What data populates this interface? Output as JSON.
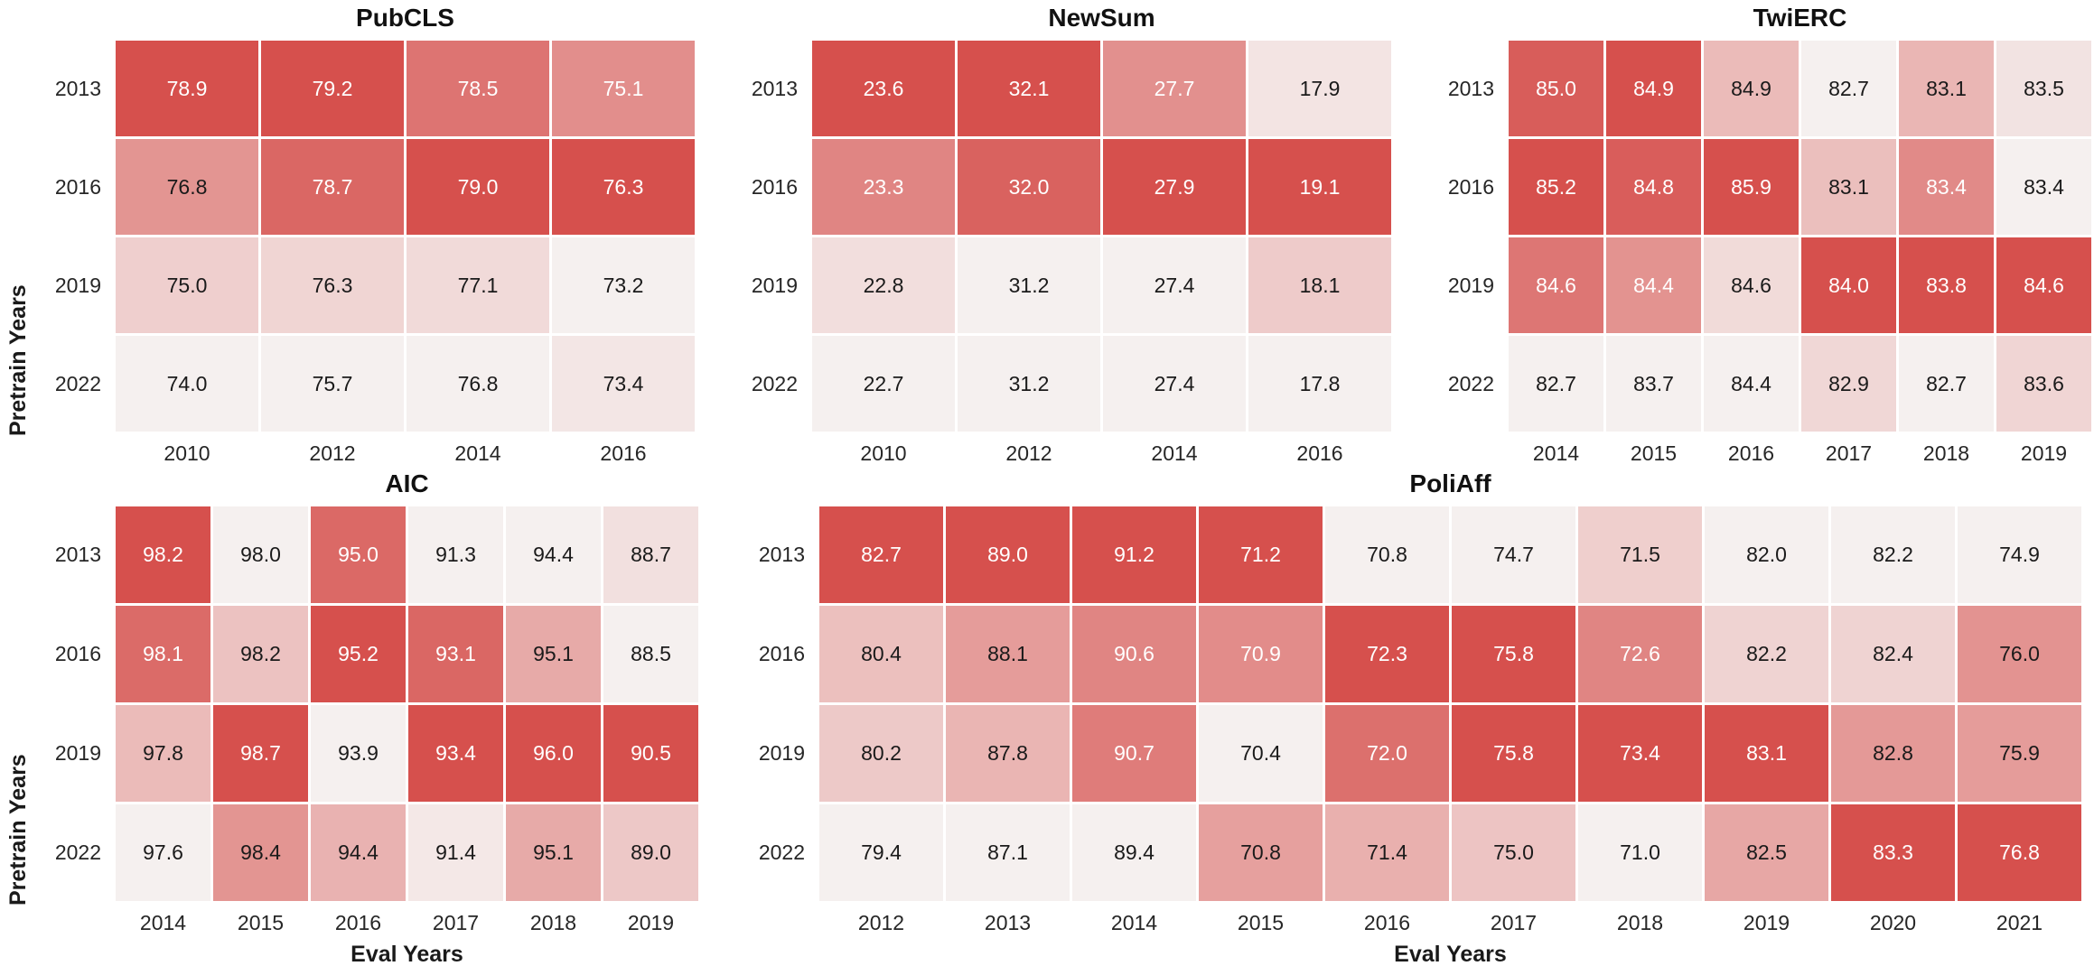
{
  "axis": {
    "pretrain_label": "Pretrain Years",
    "eval_label": "Eval Years"
  },
  "colors": {
    "cmap_low": "#f5f0ef",
    "cmap_high": "#d6504d",
    "annot_dark": "#1a1a1a",
    "annot_light": "#ffffff",
    "tick": "#262626",
    "white_text_threshold": 0.58
  },
  "chart_data": [
    {
      "type": "heatmap",
      "title": "PubCLS",
      "ylabel": "Pretrain Years",
      "xlabel": "",
      "normalization": "per-column",
      "rows": [
        "2013",
        "2016",
        "2019",
        "2022"
      ],
      "columns": [
        "2010",
        "2012",
        "2014",
        "2016"
      ],
      "values": [
        [
          78.9,
          79.2,
          78.5,
          75.1
        ],
        [
          76.8,
          78.7,
          79.0,
          76.3
        ],
        [
          75.0,
          76.3,
          77.1,
          73.2
        ],
        [
          74.0,
          75.7,
          76.8,
          73.4
        ]
      ]
    },
    {
      "type": "heatmap",
      "title": "NewSum",
      "ylabel": "",
      "xlabel": "",
      "normalization": "per-column",
      "rows": [
        "2013",
        "2016",
        "2019",
        "2022"
      ],
      "columns": [
        "2010",
        "2012",
        "2014",
        "2016"
      ],
      "values": [
        [
          23.6,
          32.1,
          27.7,
          17.9
        ],
        [
          23.3,
          32.0,
          27.9,
          19.1
        ],
        [
          22.8,
          31.2,
          27.4,
          18.1
        ],
        [
          22.7,
          31.2,
          27.4,
          17.8
        ]
      ]
    },
    {
      "type": "heatmap",
      "title": "TwiERC",
      "ylabel": "",
      "xlabel": "",
      "normalization": "per-column",
      "rows": [
        "2013",
        "2016",
        "2019",
        "2022"
      ],
      "columns": [
        "2014",
        "2015",
        "2016",
        "2017",
        "2018",
        "2019"
      ],
      "values": [
        [
          85.0,
          84.9,
          84.9,
          82.7,
          83.1,
          83.5
        ],
        [
          85.2,
          84.8,
          85.9,
          83.1,
          83.4,
          83.4
        ],
        [
          84.6,
          84.4,
          84.6,
          84.0,
          83.8,
          84.6
        ],
        [
          82.7,
          83.7,
          84.4,
          82.9,
          82.7,
          83.6
        ]
      ]
    },
    {
      "type": "heatmap",
      "title": "AIC",
      "ylabel": "Pretrain Years",
      "xlabel": "Eval Years",
      "normalization": "per-column",
      "rows": [
        "2013",
        "2016",
        "2019",
        "2022"
      ],
      "columns": [
        "2014",
        "2015",
        "2016",
        "2017",
        "2018",
        "2019"
      ],
      "values": [
        [
          98.2,
          98.0,
          95.0,
          91.3,
          94.4,
          88.7
        ],
        [
          98.1,
          98.2,
          95.2,
          93.1,
          95.1,
          88.5
        ],
        [
          97.8,
          98.7,
          93.9,
          93.4,
          96.0,
          90.5
        ],
        [
          97.6,
          98.4,
          94.4,
          91.4,
          95.1,
          89.0
        ]
      ]
    },
    {
      "type": "heatmap",
      "title": "PoliAff",
      "ylabel": "",
      "xlabel": "Eval Years",
      "normalization": "per-column",
      "rows": [
        "2013",
        "2016",
        "2019",
        "2022"
      ],
      "columns": [
        "2012",
        "2013",
        "2014",
        "2015",
        "2016",
        "2017",
        "2018",
        "2019",
        "2020",
        "2021"
      ],
      "values": [
        [
          82.7,
          89.0,
          91.2,
          71.2,
          70.8,
          74.7,
          71.5,
          82.0,
          82.2,
          74.9
        ],
        [
          80.4,
          88.1,
          90.6,
          70.9,
          72.3,
          75.8,
          72.6,
          82.2,
          82.4,
          76.0
        ],
        [
          80.2,
          87.8,
          90.7,
          70.4,
          72.0,
          75.8,
          73.4,
          83.1,
          82.8,
          75.9
        ],
        [
          79.4,
          87.1,
          89.4,
          70.8,
          71.4,
          75.0,
          71.0,
          82.5,
          83.3,
          76.8
        ]
      ]
    }
  ]
}
